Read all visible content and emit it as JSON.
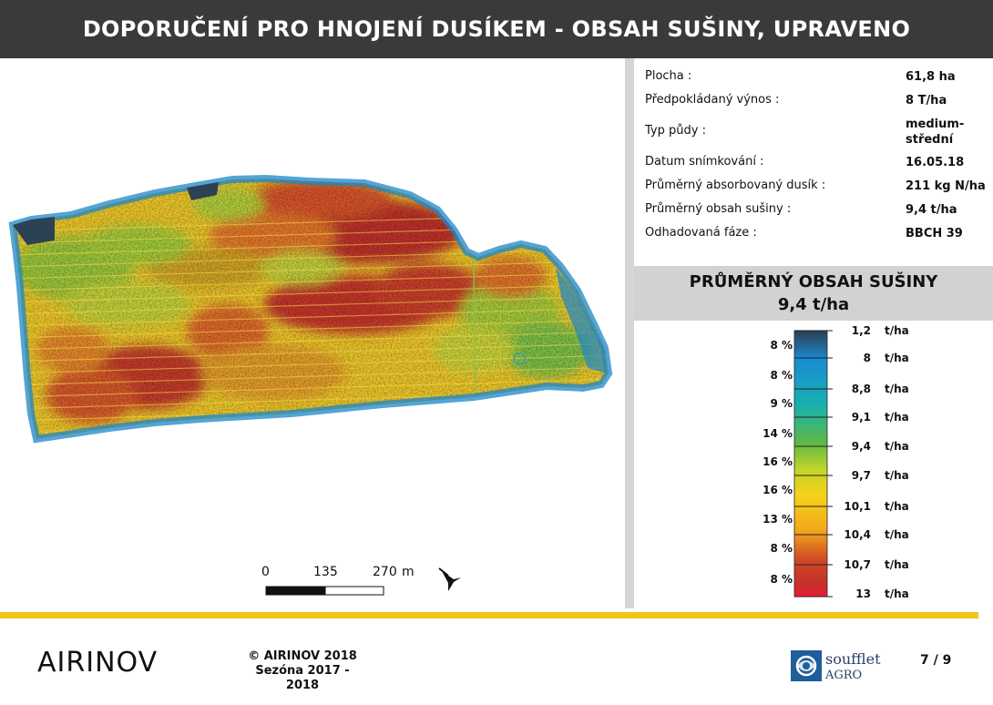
{
  "header": {
    "title": "DOPORUČENÍ PRO HNOJENÍ DUSÍKEM - OBSAH SUŠINY, UPRAVENO"
  },
  "info": {
    "rows": [
      {
        "label": "Plocha :",
        "value": "61,8 ha"
      },
      {
        "label": "Předpokládaný výnos :",
        "value": "8 T/ha"
      },
      {
        "label": "Typ půdy :",
        "value": "medium-\nstřední"
      },
      {
        "label": "Datum snímkování :",
        "value": "16.05.18"
      },
      {
        "label": "Průměrný absorbovaný dusík :",
        "value": "211 kg N/ha"
      },
      {
        "label": "Průměrný obsah sušiny :",
        "value": "9,4 t/ha"
      },
      {
        "label": "Odhadovaná fáze :",
        "value": "BBCH 39"
      }
    ]
  },
  "average": {
    "title": "PRŮMĚRNÝ OBSAH SUŠINY",
    "value": "9,4 t/ha"
  },
  "legend": {
    "unit": "t/ha",
    "values": [
      "1,2",
      "8",
      "8,8",
      "9,1",
      "9,4",
      "9,7",
      "10,1",
      "10,4",
      "10,7",
      "13"
    ],
    "percents": [
      "8 %",
      "8 %",
      "9 %",
      "14 %",
      "16 %",
      "16 %",
      "13 %",
      "8 %",
      "8 %"
    ],
    "colors": [
      "#2b4a66",
      "#1a8bd4",
      "#17b2b0",
      "#5cb845",
      "#c2d42b",
      "#f7d21c",
      "#f2a81c",
      "#e05d20",
      "#c63329"
    ]
  },
  "scale": {
    "labels": [
      "0",
      "135",
      "270"
    ],
    "unit": "m"
  },
  "footer": {
    "logo": "AIRINOV",
    "copyright": "© AIRINOV 2018",
    "season": "Sezóna 2017 - 2018",
    "partner_name": "soufflet",
    "partner_sub": "AGRO",
    "page": "7 / 9"
  }
}
